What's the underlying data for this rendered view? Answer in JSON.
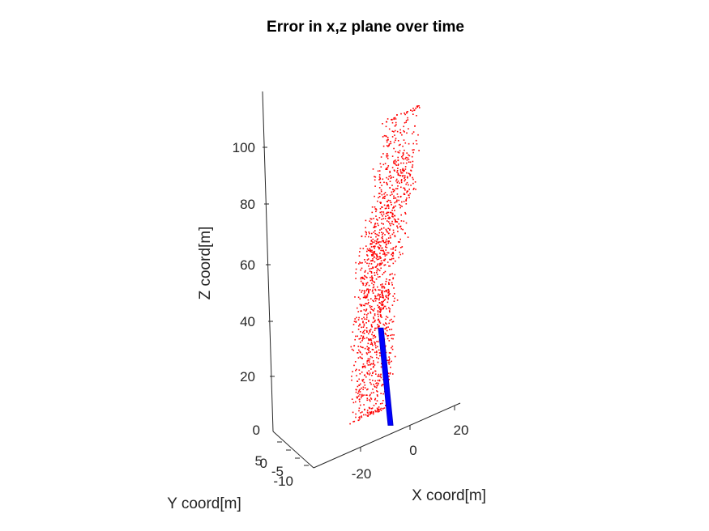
{
  "chart_data": {
    "type": "scatter",
    "title": "Error in x,z plane over time",
    "xlabel": "X coord[m]",
    "ylabel": "Y coord[m]",
    "zlabel": "Z coord[m]",
    "xlim": [
      -30,
      30
    ],
    "ylim": [
      -10,
      10
    ],
    "zlim": [
      0,
      120
    ],
    "x_ticks": [
      "-20",
      "0",
      "20"
    ],
    "y_ticks": [
      "-10",
      "-5",
      "0",
      "5"
    ],
    "z_ticks": [
      "0",
      "20",
      "40",
      "60",
      "80",
      "100"
    ],
    "grid": false,
    "series": [
      {
        "color": "#ff0000",
        "marker": "dot",
        "description_points": [
          {
            "x": -5,
            "y": 0,
            "z": 20
          },
          {
            "x": -3,
            "y": 0,
            "z": 35
          },
          {
            "x": -6,
            "y": 0,
            "z": 50
          },
          {
            "x": -4,
            "y": 0,
            "z": 62
          },
          {
            "x": 0,
            "y": 0,
            "z": 80
          },
          {
            "x": 3,
            "y": 0,
            "z": 100
          }
        ]
      },
      {
        "color": "#0000ff",
        "marker": "square",
        "x_range": [
          -2,
          2
        ],
        "y_value": 0,
        "z_range": [
          0,
          38
        ]
      }
    ]
  }
}
